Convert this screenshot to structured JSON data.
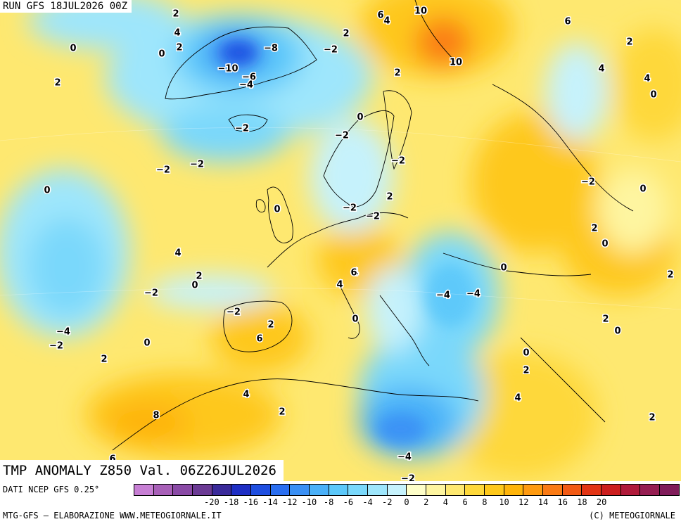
{
  "header": {
    "run_label": "RUN GFS 18JUL2026 00Z",
    "title": "TMP ANOMALY Z850 Val. 06Z26JUL2026"
  },
  "footer": {
    "dati": "DATI NCEP GFS 0.25°",
    "credits": "MTG-GFS – ELABORAZIONE WWW.METEOGIORNALE.IT",
    "copyright": "(C) METEOGIORNALE"
  },
  "legend": {
    "colors": [
      "#c77fd4",
      "#a860b8",
      "#8a4aa6",
      "#6b3a94",
      "#3a2a9a",
      "#1e2ec4",
      "#1e4ee0",
      "#2a6ef0",
      "#3a90f5",
      "#4ab0f8",
      "#5cc8fa",
      "#7ad8fb",
      "#9ee6fc",
      "#c6f2fc",
      "#fefec8",
      "#fef5a0",
      "#fee870",
      "#fed83a",
      "#fec81a",
      "#feb40a",
      "#fe9a10",
      "#fa7a14",
      "#f25a14",
      "#e23414",
      "#cc1e1e",
      "#b01a3a",
      "#961e52",
      "#801c5a"
    ],
    "tick_values": [
      "-20",
      "-18",
      "-16",
      "-14",
      "-12",
      "-10",
      "-8",
      "-6",
      "-4",
      "-2",
      "0",
      "2",
      "4",
      "6",
      "8",
      "10",
      "12",
      "14",
      "16",
      "18",
      "20"
    ]
  },
  "map": {
    "labels": [
      "2",
      "4",
      "0",
      "2",
      "-10",
      "-8",
      "-6",
      "-4",
      "-2",
      "2",
      "-2",
      "6",
      "4",
      "10",
      "10",
      "2",
      "0",
      "6",
      "-2",
      "4",
      "2",
      "-2",
      "-2",
      "0",
      "-2",
      "2",
      "-2",
      "0",
      "-2",
      "-2",
      "0",
      "2",
      "0",
      "0",
      "2",
      "4",
      "4",
      "2",
      "0",
      "-2",
      "6",
      "4",
      "0",
      "-4",
      "-4",
      "0",
      "2",
      "0",
      "-2",
      "0",
      "4",
      "2",
      "6",
      "-4",
      "-2",
      "2",
      "0",
      "2",
      "4",
      "8",
      "2",
      "6",
      "0",
      "2",
      "4",
      "2",
      "-4",
      "-2"
    ]
  }
}
